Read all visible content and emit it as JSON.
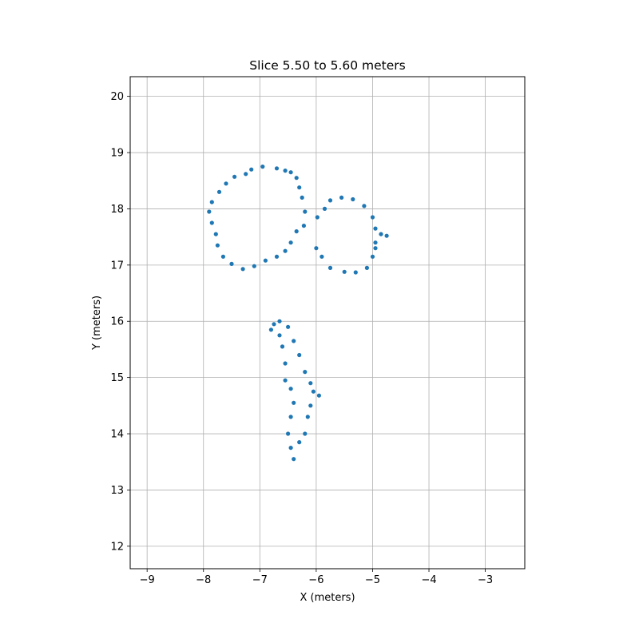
{
  "chart_data": {
    "type": "scatter",
    "title": "Slice 5.50 to 5.60 meters",
    "xlabel": "X (meters)",
    "ylabel": "Y (meters)",
    "xlim": [
      -9.3,
      -2.3
    ],
    "ylim": [
      11.6,
      20.35
    ],
    "xticks": [
      -9,
      -8,
      -7,
      -6,
      -5,
      -4,
      -3
    ],
    "yticks": [
      12,
      13,
      14,
      15,
      16,
      17,
      18,
      19,
      20
    ],
    "xtick_labels": [
      "−9",
      "−8",
      "−7",
      "−6",
      "−5",
      "−4",
      "−3"
    ],
    "ytick_labels": [
      "12",
      "13",
      "14",
      "15",
      "16",
      "17",
      "18",
      "19",
      "20"
    ],
    "grid": true,
    "color": "#1f77b4",
    "series": [
      {
        "points": [
          [
            -6.7,
            18.72
          ],
          [
            -6.95,
            18.75
          ],
          [
            -7.15,
            18.7
          ],
          [
            -7.25,
            18.62
          ],
          [
            -7.45,
            18.57
          ],
          [
            -7.6,
            18.45
          ],
          [
            -7.72,
            18.3
          ],
          [
            -7.85,
            18.12
          ],
          [
            -7.9,
            17.95
          ],
          [
            -7.85,
            17.75
          ],
          [
            -7.78,
            17.55
          ],
          [
            -7.75,
            17.35
          ],
          [
            -7.65,
            17.15
          ],
          [
            -7.5,
            17.02
          ],
          [
            -7.3,
            16.93
          ],
          [
            -7.1,
            16.98
          ],
          [
            -6.9,
            17.08
          ],
          [
            -6.7,
            17.15
          ],
          [
            -6.55,
            17.25
          ],
          [
            -6.45,
            17.4
          ],
          [
            -6.35,
            17.6
          ],
          [
            -6.22,
            17.7
          ],
          [
            -6.2,
            17.95
          ],
          [
            -6.25,
            18.2
          ],
          [
            -6.3,
            18.38
          ],
          [
            -6.35,
            18.55
          ],
          [
            -6.45,
            18.65
          ],
          [
            -6.55,
            18.68
          ]
        ]
      },
      {
        "points": [
          [
            -5.55,
            18.2
          ],
          [
            -5.35,
            18.17
          ],
          [
            -5.15,
            18.05
          ],
          [
            -5.0,
            17.85
          ],
          [
            -4.95,
            17.65
          ],
          [
            -4.95,
            17.4
          ],
          [
            -5.0,
            17.15
          ],
          [
            -5.1,
            16.95
          ],
          [
            -5.3,
            16.87
          ],
          [
            -5.5,
            16.88
          ],
          [
            -5.75,
            16.95
          ],
          [
            -5.9,
            17.15
          ],
          [
            -6.0,
            17.3
          ],
          [
            -5.98,
            17.85
          ],
          [
            -5.85,
            18.0
          ],
          [
            -5.75,
            18.15
          ],
          [
            -4.85,
            17.55
          ],
          [
            -4.75,
            17.52
          ],
          [
            -4.95,
            17.3
          ]
        ]
      },
      {
        "points": [
          [
            -6.75,
            15.95
          ],
          [
            -6.65,
            16.0
          ],
          [
            -6.5,
            15.9
          ],
          [
            -6.4,
            15.65
          ],
          [
            -6.3,
            15.4
          ],
          [
            -6.2,
            15.1
          ],
          [
            -6.1,
            14.9
          ],
          [
            -6.05,
            14.75
          ],
          [
            -5.95,
            14.68
          ],
          [
            -6.1,
            14.5
          ],
          [
            -6.15,
            14.3
          ],
          [
            -6.2,
            14.0
          ],
          [
            -6.3,
            13.85
          ],
          [
            -6.4,
            13.55
          ],
          [
            -6.45,
            13.75
          ],
          [
            -6.5,
            14.0
          ],
          [
            -6.45,
            14.3
          ],
          [
            -6.4,
            14.55
          ],
          [
            -6.45,
            14.8
          ],
          [
            -6.55,
            14.95
          ],
          [
            -6.55,
            15.25
          ],
          [
            -6.6,
            15.55
          ],
          [
            -6.65,
            15.75
          ],
          [
            -6.8,
            15.85
          ]
        ]
      }
    ]
  }
}
